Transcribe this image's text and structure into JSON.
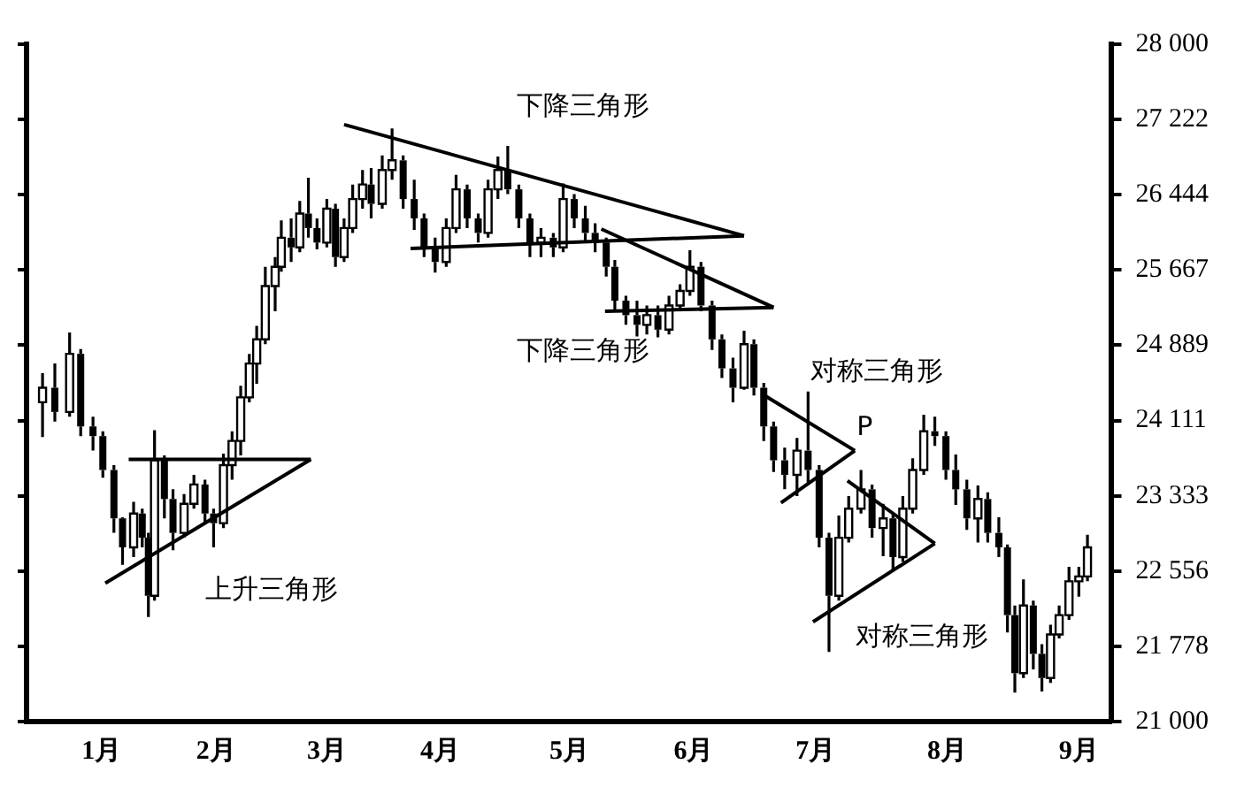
{
  "chart_data": {
    "type": "candlestick",
    "x": [
      0.52,
      0.62,
      0.74,
      0.83,
      0.93,
      1.01,
      1.1,
      1.17,
      1.26,
      1.33,
      1.38,
      1.43,
      1.51,
      1.58,
      1.67,
      1.75,
      1.84,
      1.91,
      1.99,
      2.06,
      2.13,
      2.2,
      2.26,
      2.33,
      2.41,
      2.46,
      2.54,
      2.61,
      2.68,
      2.75,
      2.83,
      2.9,
      2.97,
      3.04,
      3.12,
      3.19,
      3.28,
      3.36,
      3.45,
      3.54,
      3.62,
      3.71,
      3.8,
      3.88,
      3.97,
      4.06,
      4.14,
      4.22,
      4.3,
      4.39,
      4.48,
      4.57,
      4.67,
      4.75,
      4.84,
      4.93,
      5.01,
      5.1,
      5.17,
      5.26,
      5.35,
      5.43,
      5.52,
      5.61,
      5.7,
      5.78,
      5.87,
      5.96,
      6.04,
      6.13,
      6.22,
      6.3,
      6.38,
      6.46,
      6.55,
      6.65,
      6.74,
      6.83,
      6.91,
      6.99,
      7.07,
      7.17,
      7.26,
      7.35,
      7.43,
      7.51,
      7.59,
      7.68,
      7.77,
      7.86,
      7.94,
      8.03,
      8.12,
      8.2,
      8.29,
      8.36,
      8.42,
      8.49,
      8.57,
      8.64,
      8.71,
      8.78,
      8.86,
      8.94,
      9.01
    ],
    "ohlc": [
      [
        24300,
        24600,
        23940,
        24450
      ],
      [
        24450,
        24700,
        24100,
        24200
      ],
      [
        24200,
        25020,
        24150,
        24800
      ],
      [
        24800,
        24850,
        23950,
        24050
      ],
      [
        24050,
        24150,
        23800,
        23950
      ],
      [
        23950,
        24000,
        23520,
        23600
      ],
      [
        23600,
        23650,
        22950,
        23100
      ],
      [
        23100,
        23110,
        22620,
        22800
      ],
      [
        22800,
        23270,
        22700,
        23150
      ],
      [
        23150,
        23200,
        22800,
        22900
      ],
      [
        22900,
        22950,
        22080,
        22300
      ],
      [
        22300,
        24010,
        22250,
        23700
      ],
      [
        23700,
        23750,
        23100,
        23300
      ],
      [
        23300,
        23400,
        22770,
        22950
      ],
      [
        22950,
        23350,
        22900,
        23250
      ],
      [
        23250,
        23550,
        23200,
        23450
      ],
      [
        23450,
        23500,
        23050,
        23150
      ],
      [
        23150,
        23200,
        22800,
        23050
      ],
      [
        23050,
        23770,
        23000,
        23650
      ],
      [
        23650,
        24000,
        23500,
        23900
      ],
      [
        23900,
        24470,
        23750,
        24350
      ],
      [
        24350,
        24800,
        24300,
        24700
      ],
      [
        24700,
        25090,
        24490,
        24950
      ],
      [
        24950,
        25700,
        24900,
        25500
      ],
      [
        25500,
        25800,
        25240,
        25700
      ],
      [
        25700,
        26180,
        25650,
        26000
      ],
      [
        26000,
        26200,
        25750,
        25900
      ],
      [
        25900,
        26380,
        25850,
        26250
      ],
      [
        26250,
        26620,
        26000,
        26100
      ],
      [
        26100,
        26200,
        25880,
        25950
      ],
      [
        25950,
        26400,
        25900,
        26300
      ],
      [
        26300,
        26350,
        25700,
        25800
      ],
      [
        25800,
        26200,
        25750,
        26100
      ],
      [
        26100,
        26550,
        26050,
        26400
      ],
      [
        26400,
        26700,
        26300,
        26550
      ],
      [
        26550,
        26720,
        26200,
        26350
      ],
      [
        26350,
        26850,
        26300,
        26700
      ],
      [
        26700,
        27130,
        26600,
        26800
      ],
      [
        26800,
        26850,
        26300,
        26400
      ],
      [
        26400,
        26600,
        26080,
        26200
      ],
      [
        26200,
        26250,
        25800,
        25900
      ],
      [
        25900,
        26000,
        25640,
        25750
      ],
      [
        25750,
        26200,
        25700,
        26100
      ],
      [
        26100,
        26650,
        26050,
        26500
      ],
      [
        26500,
        26550,
        26100,
        26200
      ],
      [
        26200,
        26250,
        25950,
        26050
      ],
      [
        26050,
        26600,
        26000,
        26500
      ],
      [
        26500,
        26840,
        26400,
        26700
      ],
      [
        26700,
        26950,
        26450,
        26500
      ],
      [
        26500,
        26550,
        26100,
        26200
      ],
      [
        26200,
        26250,
        25800,
        25950
      ],
      [
        25950,
        26100,
        25800,
        26000
      ],
      [
        26000,
        26050,
        25800,
        25900
      ],
      [
        25900,
        26560,
        25850,
        26400
      ],
      [
        26400,
        26450,
        26100,
        26200
      ],
      [
        26200,
        26330,
        25950,
        26050
      ],
      [
        26050,
        26150,
        25850,
        25950
      ],
      [
        25950,
        26000,
        25600,
        25700
      ],
      [
        25700,
        25770,
        25240,
        25350
      ],
      [
        25350,
        25400,
        25100,
        25200
      ],
      [
        25200,
        25350,
        24980,
        25100
      ],
      [
        25100,
        25300,
        25000,
        25200
      ],
      [
        25200,
        25300,
        24970,
        25050
      ],
      [
        25050,
        25400,
        25000,
        25300
      ],
      [
        25300,
        25520,
        25250,
        25450
      ],
      [
        25450,
        25870,
        25400,
        25700
      ],
      [
        25700,
        25750,
        25240,
        25300
      ],
      [
        25300,
        25350,
        24840,
        24950
      ],
      [
        24950,
        25000,
        24550,
        24650
      ],
      [
        24650,
        24760,
        24300,
        24450
      ],
      [
        24450,
        25040,
        24430,
        24900
      ],
      [
        24900,
        24950,
        24370,
        24450
      ],
      [
        24450,
        24500,
        23900,
        24050
      ],
      [
        24050,
        24100,
        23580,
        23700
      ],
      [
        23700,
        23830,
        23400,
        23550
      ],
      [
        23550,
        23930,
        23330,
        23800
      ],
      [
        23800,
        24410,
        23470,
        23600
      ],
      [
        23600,
        23650,
        22800,
        22900
      ],
      [
        22900,
        22950,
        21720,
        22300
      ],
      [
        22300,
        23130,
        22250,
        22900
      ],
      [
        22900,
        23330,
        22850,
        23200
      ],
      [
        23200,
        23600,
        23150,
        23400
      ],
      [
        23400,
        23450,
        22900,
        23000
      ],
      [
        23000,
        23250,
        22710,
        23100
      ],
      [
        23100,
        23150,
        22570,
        22700
      ],
      [
        22700,
        23330,
        22650,
        23200
      ],
      [
        23200,
        23720,
        23150,
        23600
      ],
      [
        23600,
        24170,
        23550,
        24000
      ],
      [
        24000,
        24150,
        23850,
        23950
      ],
      [
        23950,
        24000,
        23500,
        23600
      ],
      [
        23600,
        23760,
        23240,
        23400
      ],
      [
        23400,
        23500,
        22980,
        23100
      ],
      [
        23100,
        23440,
        22850,
        23300
      ],
      [
        23300,
        23370,
        22850,
        22950
      ],
      [
        22950,
        23110,
        22700,
        22800
      ],
      [
        22800,
        22830,
        21920,
        22100
      ],
      [
        22100,
        22200,
        21300,
        21500
      ],
      [
        21500,
        22470,
        21450,
        22200
      ],
      [
        22200,
        22250,
        21540,
        21700
      ],
      [
        21700,
        21800,
        21310,
        21450
      ],
      [
        21450,
        22000,
        21400,
        21900
      ],
      [
        21900,
        22200,
        21860,
        22100
      ],
      [
        22100,
        22600,
        22050,
        22450
      ],
      [
        22450,
        22600,
        22290,
        22500
      ],
      [
        22500,
        22930,
        22450,
        22800
      ]
    ],
    "color": "#000000",
    "series": [
      {
        "type": "line",
        "color": "#000000",
        "x": [
          1.22,
          2.7
        ],
        "values": [
          23710,
          23710
        ]
      },
      {
        "type": "line",
        "color": "#000000",
        "x": [
          1.03,
          2.7
        ],
        "values": [
          22430,
          23710
        ]
      },
      {
        "type": "line",
        "color": "#000000",
        "x": [
          2.97,
          6.22
        ],
        "values": [
          27170,
          26020
        ]
      },
      {
        "type": "line",
        "color": "#000000",
        "x": [
          3.51,
          6.22
        ],
        "values": [
          25890,
          26020
        ]
      },
      {
        "type": "line",
        "color": "#000000",
        "x": [
          5.06,
          6.46
        ],
        "values": [
          26090,
          25280
        ]
      },
      {
        "type": "line",
        "color": "#000000",
        "x": [
          5.09,
          6.46
        ],
        "values": [
          25240,
          25280
        ]
      },
      {
        "type": "line",
        "color": "#000000",
        "x": [
          6.36,
          7.12
        ],
        "values": [
          24390,
          23800
        ]
      },
      {
        "type": "line",
        "color": "#000000",
        "x": [
          6.52,
          7.12
        ],
        "values": [
          23260,
          23800
        ]
      },
      {
        "type": "line",
        "color": "#000000",
        "x": [
          7.06,
          7.77
        ],
        "values": [
          23490,
          22840
        ]
      },
      {
        "type": "line",
        "color": "#000000",
        "x": [
          6.78,
          7.77
        ],
        "values": [
          22030,
          22840
        ]
      }
    ],
    "annotations": [
      "上升三角形",
      "下降三角形",
      "下降三角形",
      "对称三角形",
      "P",
      "对称三角形"
    ],
    "xlim": [
      0.39,
      9.2
    ],
    "xticks": [
      {
        "value": 1,
        "label": "1月"
      },
      {
        "value": 1.93,
        "label": "2月"
      },
      {
        "value": 2.83,
        "label": "3月"
      },
      {
        "value": 3.75,
        "label": "4月"
      },
      {
        "value": 4.8,
        "label": "5月"
      },
      {
        "value": 5.81,
        "label": "6月"
      },
      {
        "value": 6.8,
        "label": "7月"
      },
      {
        "value": 7.87,
        "label": "8月"
      },
      {
        "value": 8.94,
        "label": "9月"
      }
    ],
    "ylim": [
      21000,
      28000
    ],
    "yticks": [
      {
        "value": 21000,
        "label": "21 000"
      },
      {
        "value": 21778,
        "label": "21 778"
      },
      {
        "value": 22556,
        "label": "22 556"
      },
      {
        "value": 23333,
        "label": "23 333"
      },
      {
        "value": 24111,
        "label": "24 111"
      },
      {
        "value": 24889,
        "label": "24 889"
      },
      {
        "value": 25667,
        "label": "25 667"
      },
      {
        "value": 26444,
        "label": "26 444"
      },
      {
        "value": 27222,
        "label": "27 222"
      },
      {
        "value": 28000,
        "label": "28 000"
      }
    ],
    "grid": false,
    "legend": false
  }
}
